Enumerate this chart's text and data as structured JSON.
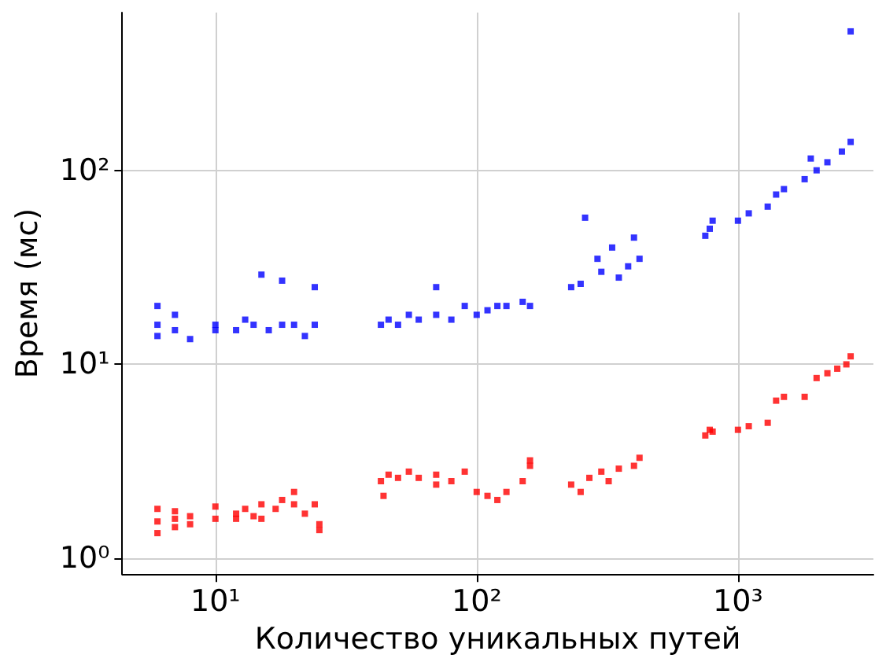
{
  "chart_data": {
    "type": "scatter",
    "xlabel": "Количество уникальных путей",
    "ylabel": "Время (мс)",
    "log": "xy",
    "grid": true,
    "marker": "square",
    "xlim": [
      4.4,
      3300
    ],
    "ylim": [
      0.83,
      650
    ],
    "xticks": [
      {
        "value": 10,
        "label": "10¹"
      },
      {
        "value": 100,
        "label": "10²"
      },
      {
        "value": 1000,
        "label": "10³"
      }
    ],
    "yticks": [
      {
        "value": 1,
        "label": "10⁰"
      },
      {
        "value": 10,
        "label": "10¹"
      },
      {
        "value": 100,
        "label": "10²"
      }
    ],
    "series": [
      {
        "color": "#ff0000",
        "x": [
          6,
          6,
          6,
          7,
          7,
          7,
          8,
          8,
          10,
          10,
          12,
          12,
          13,
          14,
          15,
          15,
          17,
          18,
          20,
          20,
          22,
          24,
          25,
          25,
          43,
          44,
          46,
          50,
          55,
          60,
          70,
          70,
          80,
          90,
          100,
          110,
          120,
          130,
          150,
          160,
          160,
          230,
          250,
          270,
          300,
          320,
          350,
          400,
          420,
          750,
          780,
          800,
          1000,
          1100,
          1300,
          1400,
          1500,
          1800,
          2000,
          2200,
          2400,
          2600,
          2700
        ],
        "values": [
          1.8,
          1.55,
          1.35,
          1.75,
          1.45,
          1.6,
          1.5,
          1.65,
          1.6,
          1.85,
          1.7,
          1.6,
          1.8,
          1.65,
          1.9,
          1.6,
          1.8,
          2.0,
          1.9,
          2.2,
          1.7,
          1.9,
          1.5,
          1.4,
          2.5,
          2.1,
          2.7,
          2.6,
          2.8,
          2.6,
          2.4,
          2.7,
          2.5,
          2.8,
          2.2,
          2.1,
          2.0,
          2.2,
          2.5,
          3.0,
          3.2,
          2.4,
          2.2,
          2.6,
          2.8,
          2.5,
          2.9,
          3.0,
          3.3,
          4.3,
          4.6,
          4.5,
          4.6,
          4.8,
          5.0,
          6.5,
          6.8,
          6.8,
          8.5,
          9.0,
          9.5,
          10,
          11
        ]
      },
      {
        "color": "#0000ff",
        "x": [
          6,
          6,
          6,
          7,
          7,
          8,
          10,
          10,
          12,
          13,
          14,
          15,
          16,
          18,
          18,
          20,
          22,
          24,
          24,
          43,
          46,
          50,
          55,
          60,
          70,
          70,
          80,
          90,
          100,
          110,
          120,
          130,
          150,
          160,
          230,
          250,
          260,
          290,
          300,
          330,
          350,
          380,
          420,
          400,
          750,
          780,
          800,
          1000,
          1100,
          1300,
          1400,
          1500,
          1800,
          1900,
          2000,
          2200,
          2500,
          2700,
          2700
        ],
        "values": [
          14,
          16,
          20,
          15,
          18,
          13.5,
          15,
          16,
          15,
          17,
          16,
          29,
          15,
          16,
          27,
          16,
          14,
          25,
          16,
          16,
          17,
          16,
          18,
          17,
          18,
          25,
          17,
          20,
          18,
          19,
          20,
          20,
          21,
          20,
          25,
          26,
          57,
          35,
          30,
          40,
          28,
          32,
          35,
          45,
          46,
          50,
          55,
          55,
          60,
          65,
          75,
          80,
          90,
          115,
          100,
          110,
          125,
          140,
          520
        ]
      }
    ]
  }
}
